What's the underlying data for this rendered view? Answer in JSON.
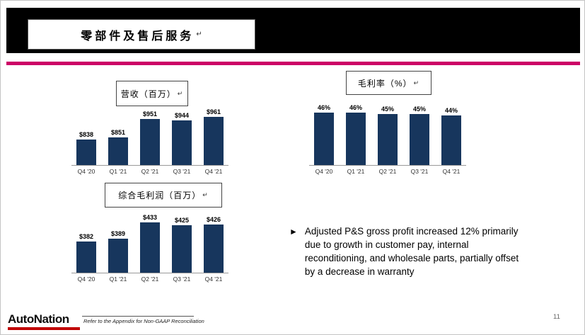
{
  "slide": {
    "title": "零部件及售后服务",
    "return_mark": "↵",
    "page_number": "11",
    "footnote": "Refer to the Appendix for Non-GAAP Reconciliation",
    "logo_text": "AutoNation",
    "bullet": {
      "marker": "►",
      "text": "Adjusted P&S gross profit increased 12% primarily due to growth in customer pay, internal reconditioning, and wholesale parts, partially offset by a decrease in warranty"
    },
    "colors": {
      "bar": "#17365D",
      "accent_line": "#CC0066",
      "header_bg": "#000000",
      "logo_underline": "#C00000"
    }
  },
  "chart_data": [
    {
      "type": "bar",
      "title": "营收（百万）",
      "categories": [
        "Q4 '20",
        "Q1 '21",
        "Q2 '21",
        "Q3 '21",
        "Q4 '21"
      ],
      "values": [
        838,
        851,
        951,
        944,
        961
      ],
      "labels": [
        "$838",
        "$851",
        "$951",
        "$944",
        "$961"
      ],
      "ylim": [
        700,
        1000
      ],
      "grid": false,
      "legend": false
    },
    {
      "type": "bar",
      "title": "毛利率（%）",
      "categories": [
        "Q4 '20",
        "Q1 '21",
        "Q2 '21",
        "Q3 '21",
        "Q4 '21"
      ],
      "values": [
        46,
        46,
        45,
        45,
        44
      ],
      "labels": [
        "46%",
        "46%",
        "45%",
        "45%",
        "44%"
      ],
      "ylim": [
        0,
        50
      ],
      "grid": false,
      "legend": false
    },
    {
      "type": "bar",
      "title": "综合毛利润（百万）",
      "categories": [
        "Q4 '20",
        "Q1 '21",
        "Q2 '21",
        "Q3 '21",
        "Q4 '21"
      ],
      "values": [
        382,
        389,
        433,
        425,
        426
      ],
      "labels": [
        "$382",
        "$389",
        "$433",
        "$425",
        "$426"
      ],
      "ylim": [
        300,
        440
      ],
      "grid": false,
      "legend": false
    }
  ]
}
